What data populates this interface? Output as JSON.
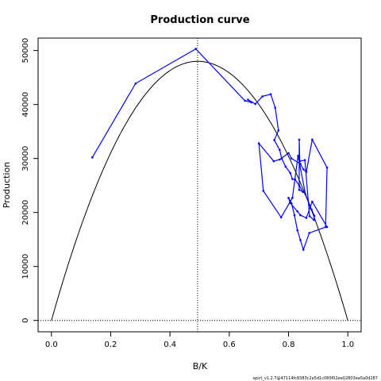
{
  "chart_data": {
    "type": "line",
    "title": "Production curve",
    "xlabel": "B/K",
    "ylabel": "Production",
    "xlim": [
      -0.045,
      1.045
    ],
    "ylim": [
      -2100,
      52300
    ],
    "xticks": [
      0.0,
      0.2,
      0.4,
      0.6,
      0.8,
      1.0
    ],
    "xtick_labels": [
      "0.0",
      "0.2",
      "0.4",
      "0.6",
      "0.8",
      "1.0"
    ],
    "yticks": [
      0,
      10000,
      20000,
      30000,
      40000,
      50000
    ],
    "ytick_labels": [
      "0",
      "10000",
      "20000",
      "30000",
      "40000",
      "50000"
    ],
    "grid": false,
    "legend": "none",
    "reference_lines": {
      "vertical_x": 0.493,
      "horizontal_y": 0
    },
    "curve": {
      "kind": "parabola",
      "x0": 0.0,
      "x1": 1.0,
      "peak_x": 0.493,
      "peak_y": 48000,
      "color": "#000000"
    },
    "series": [
      {
        "color": "#0000ff",
        "x": [
          0.138,
          0.284,
          0.487,
          0.653,
          0.675,
          0.663,
          0.688,
          0.712,
          0.74,
          0.755,
          0.766,
          0.752,
          0.77,
          0.777,
          0.79,
          0.806,
          0.813,
          0.822,
          0.836,
          0.849,
          0.836,
          0.836,
          0.838,
          0.855,
          0.871,
          0.886,
          0.887,
          0.878,
          0.857,
          0.832,
          0.813,
          0.775,
          0.715,
          0.7,
          0.75,
          0.77,
          0.8,
          0.81,
          0.84,
          0.85,
          0.86,
          0.88,
          0.93,
          0.925,
          0.87,
          0.85,
          0.84,
          0.83,
          0.82,
          0.81,
          0.8,
          0.805,
          0.83,
          0.84,
          0.86,
          0.88,
          0.93
        ],
        "y": [
          30200,
          43900,
          50300,
          40700,
          40400,
          40900,
          40100,
          41500,
          41900,
          39400,
          35200,
          33400,
          31600,
          30000,
          28500,
          27300,
          26200,
          26100,
          25000,
          23800,
          24200,
          33500,
          29500,
          29700,
          19300,
          18600,
          19400,
          20500,
          23400,
          30500,
          22700,
          19100,
          24000,
          32800,
          29500,
          29800,
          31000,
          30000,
          29000,
          28000,
          27500,
          33500,
          28300,
          17300,
          16200,
          13100,
          14900,
          16700,
          19500,
          21700,
          22700,
          21800,
          20200,
          19500,
          19000,
          22000,
          17300
        ]
      }
    ],
    "footer_text": "spict_v1.2.7@47114fc8383c2a5d1c080f02ee02803ea5a0d287"
  }
}
